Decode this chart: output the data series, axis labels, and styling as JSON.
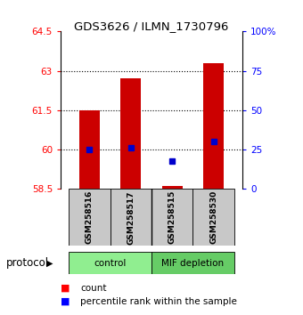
{
  "title": "GDS3626 / ILMN_1730796",
  "samples": [
    "GSM258516",
    "GSM258517",
    "GSM258515",
    "GSM258530"
  ],
  "bar_bottom": 58.5,
  "bar_tops": [
    61.5,
    62.7,
    58.6,
    63.3
  ],
  "blue_dot_pct": [
    25,
    26,
    18,
    30
  ],
  "ylim_left": [
    58.5,
    64.5
  ],
  "ylim_right": [
    0,
    100
  ],
  "yticks_left": [
    58.5,
    60.0,
    61.5,
    63.0,
    64.5
  ],
  "ytick_labels_left": [
    "58.5",
    "60",
    "61.5",
    "63",
    "64.5"
  ],
  "yticks_right": [
    0,
    25,
    50,
    75,
    100
  ],
  "ytick_labels_right": [
    "0",
    "25",
    "50",
    "75",
    "100%"
  ],
  "hlines": [
    60.0,
    61.5,
    63.0
  ],
  "bar_color": "#CC0000",
  "dot_color": "#0000CC",
  "bar_width": 0.5,
  "control_color": "#90EE90",
  "mif_color": "#66CC66",
  "gray_color": "#C8C8C8",
  "protocol_label": "protocol",
  "legend_count": "count",
  "legend_pct": "percentile rank within the sample"
}
